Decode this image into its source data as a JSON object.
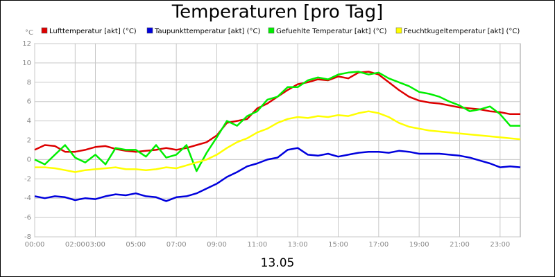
{
  "chart_data": {
    "type": "line",
    "title": "Temperaturen [pro Tag]",
    "y_label": "°C",
    "x_label": "13.05",
    "x": [
      0,
      0.5,
      1,
      1.5,
      2,
      2.5,
      3,
      3.5,
      4,
      4.5,
      5,
      5.5,
      6,
      6.5,
      7,
      7.5,
      8,
      8.5,
      9,
      9.5,
      10,
      10.5,
      11,
      11.5,
      12,
      12.5,
      13,
      13.5,
      14,
      14.5,
      15,
      15.5,
      16,
      16.5,
      17,
      17.5,
      18,
      18.5,
      19,
      19.5,
      20,
      20.5,
      21,
      21.5,
      22,
      22.5,
      23,
      23.5,
      24
    ],
    "xlim": [
      0,
      24
    ],
    "xticks": [
      {
        "value": 0,
        "label": "00:00"
      },
      {
        "value": 2,
        "label": "02:00"
      },
      {
        "value": 3,
        "label": "03:00"
      },
      {
        "value": 5,
        "label": "05:00"
      },
      {
        "value": 7,
        "label": "07:00"
      },
      {
        "value": 9,
        "label": "09:00"
      },
      {
        "value": 11,
        "label": "11:00"
      },
      {
        "value": 13,
        "label": "13:00"
      },
      {
        "value": 15,
        "label": "15:00"
      },
      {
        "value": 17,
        "label": "17:00"
      },
      {
        "value": 19,
        "label": "19:00"
      },
      {
        "value": 21,
        "label": "21:00"
      },
      {
        "value": 23,
        "label": "23:00"
      }
    ],
    "ylim": [
      -8,
      12
    ],
    "yticks": [
      -8,
      -6,
      -4,
      -2,
      0,
      2,
      4,
      6,
      8,
      10,
      12
    ],
    "grid": true,
    "series": [
      {
        "name": "Lufttemperatur [akt] (°C)",
        "color": "#dd0000",
        "values": [
          1.0,
          1.5,
          1.4,
          0.8,
          0.8,
          1.0,
          1.3,
          1.4,
          1.1,
          0.9,
          0.8,
          0.9,
          1.0,
          1.2,
          1.0,
          1.2,
          1.5,
          1.8,
          2.5,
          3.8,
          4.0,
          4.2,
          5.3,
          5.8,
          6.5,
          7.2,
          7.8,
          8.0,
          8.3,
          8.2,
          8.6,
          8.4,
          9.0,
          9.1,
          8.8,
          8.0,
          7.2,
          6.5,
          6.1,
          5.9,
          5.8,
          5.6,
          5.4,
          5.3,
          5.2,
          5.0,
          4.9,
          4.7,
          4.7
        ]
      },
      {
        "name": "Taupunkttemperatur [akt] (°C)",
        "color": "#0000dd",
        "values": [
          -3.8,
          -4.0,
          -3.8,
          -3.9,
          -4.2,
          -4.0,
          -4.1,
          -3.8,
          -3.6,
          -3.7,
          -3.5,
          -3.8,
          -3.9,
          -4.3,
          -3.9,
          -3.8,
          -3.5,
          -3.0,
          -2.5,
          -1.8,
          -1.3,
          -0.7,
          -0.4,
          0.0,
          0.2,
          1.0,
          1.2,
          0.5,
          0.4,
          0.6,
          0.3,
          0.5,
          0.7,
          0.8,
          0.8,
          0.7,
          0.9,
          0.8,
          0.6,
          0.6,
          0.6,
          0.5,
          0.4,
          0.2,
          -0.1,
          -0.4,
          -0.8,
          -0.7,
          -0.8
        ]
      },
      {
        "name": "Gefuehlte Temperatur [akt] (°C)",
        "color": "#00ee00",
        "values": [
          0.0,
          -0.5,
          0.5,
          1.5,
          0.2,
          -0.3,
          0.5,
          -0.5,
          1.2,
          1.0,
          1.0,
          0.3,
          1.5,
          0.2,
          0.5,
          1.5,
          -1.2,
          0.7,
          2.3,
          4.0,
          3.5,
          4.5,
          5.0,
          6.2,
          6.5,
          7.5,
          7.5,
          8.2,
          8.5,
          8.3,
          8.8,
          9.0,
          9.1,
          8.8,
          9.0,
          8.4,
          8.0,
          7.6,
          7.0,
          6.8,
          6.5,
          6.0,
          5.6,
          5.0,
          5.2,
          5.5,
          4.7,
          3.5,
          3.5
        ]
      },
      {
        "name": "Feuchtkugeltemperatur [akt] (°C)",
        "color": "#ffff00",
        "values": [
          -0.8,
          -0.8,
          -0.9,
          -1.1,
          -1.3,
          -1.1,
          -1.0,
          -0.9,
          -0.8,
          -1.0,
          -1.0,
          -1.1,
          -1.0,
          -0.8,
          -0.9,
          -0.6,
          -0.3,
          0.0,
          0.5,
          1.2,
          1.8,
          2.2,
          2.8,
          3.2,
          3.8,
          4.2,
          4.4,
          4.3,
          4.5,
          4.4,
          4.6,
          4.5,
          4.8,
          5.0,
          4.8,
          4.4,
          3.8,
          3.4,
          3.2,
          3.0,
          2.9,
          2.8,
          2.7,
          2.6,
          2.5,
          2.4,
          2.3,
          2.2,
          2.1
        ]
      }
    ]
  }
}
